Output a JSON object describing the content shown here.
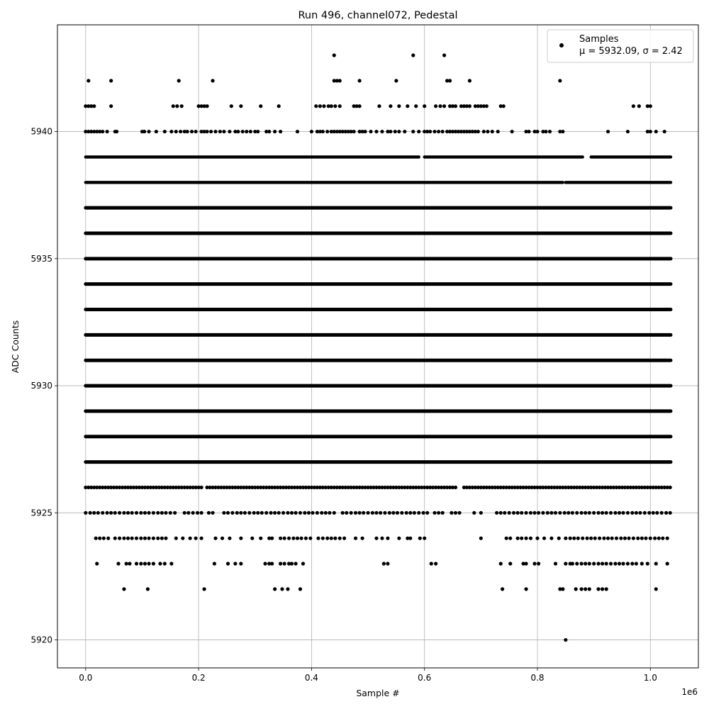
{
  "chart_data": {
    "type": "scatter",
    "title": "Run 496, channel072, Pedestal",
    "xlabel": "Sample #",
    "ylabel": "ADC Counts",
    "x_offset_label": "1e6",
    "xlim": [
      -50000,
      1085000
    ],
    "ylim": [
      5918.9,
      5944.2
    ],
    "x_ticks": [
      0,
      200000,
      400000,
      600000,
      800000,
      1000000
    ],
    "x_tick_labels": [
      "0.0",
      "0.2",
      "0.4",
      "0.6",
      "0.8",
      "1.0"
    ],
    "y_ticks": [
      5920,
      5925,
      5930,
      5935,
      5940
    ],
    "y_tick_labels": [
      "5920",
      "5925",
      "5930",
      "5935",
      "5940"
    ],
    "grid": true,
    "legend": {
      "placement": "top-right",
      "name": "Samples",
      "stats": "μ = 5932.09, σ = 2.42"
    },
    "marker_color": "#000000",
    "x_max": 1036000,
    "dense_levels": [
      5927,
      5928,
      5929,
      5930,
      5931,
      5932,
      5933,
      5934,
      5935,
      5936,
      5937
    ],
    "sparse_levels": {
      "5940": [
        0,
        5000,
        10000,
        15000,
        20000,
        25000,
        30000,
        38000,
        52000,
        55000,
        100000,
        104000,
        112000,
        125000,
        140000,
        152000,
        160000,
        168000,
        175000,
        180000,
        188000,
        195000,
        205000,
        210000,
        215000,
        222000,
        230000,
        238000,
        245000,
        255000,
        265000,
        270000,
        278000,
        285000,
        292000,
        300000,
        305000,
        320000,
        325000,
        335000,
        345000,
        375000,
        400000,
        410000,
        415000,
        420000,
        428000,
        435000,
        440000,
        445000,
        450000,
        455000,
        460000,
        465000,
        470000,
        475000,
        485000,
        490000,
        495000,
        505000,
        515000,
        525000,
        535000,
        540000,
        548000,
        555000,
        565000,
        580000,
        590000,
        600000,
        605000,
        610000,
        618000,
        625000,
        632000,
        640000,
        645000,
        650000,
        655000,
        660000,
        665000,
        670000,
        675000,
        680000,
        685000,
        690000,
        695000,
        705000,
        712000,
        720000,
        730000,
        755000,
        780000,
        785000,
        795000,
        800000,
        810000,
        815000,
        822000,
        840000,
        845000,
        925000,
        960000,
        995000,
        1000000,
        1010000,
        1025000
      ],
      "5941": [
        0,
        5000,
        10000,
        15000,
        45000,
        155000,
        162000,
        170000,
        200000,
        205000,
        210000,
        215000,
        258000,
        275000,
        310000,
        342000,
        408000,
        415000,
        422000,
        430000,
        435000,
        442000,
        450000,
        475000,
        480000,
        485000,
        520000,
        540000,
        555000,
        570000,
        585000,
        600000,
        620000,
        628000,
        635000,
        645000,
        650000,
        655000,
        665000,
        670000,
        675000,
        680000,
        690000,
        695000,
        700000,
        705000,
        710000,
        735000,
        740000,
        970000,
        980000,
        995000,
        1000000
      ],
      "5942": [
        5000,
        45000,
        165000,
        225000,
        440000,
        445000,
        450000,
        485000,
        550000,
        640000,
        645000,
        680000,
        840000
      ],
      "5943": [
        440000,
        580000,
        635000
      ],
      "5926": [
        0,
        5000,
        10000,
        15000,
        20000,
        25000,
        30000,
        35000,
        40000,
        45000,
        50000,
        55000,
        60000,
        65000,
        70000,
        75000,
        80000,
        85000,
        90000,
        95000,
        100000,
        105000,
        110000,
        115000,
        120000,
        125000,
        130000,
        135000,
        140000,
        145000,
        150000,
        155000,
        160000,
        165000,
        170000,
        175000,
        180000,
        185000,
        190000,
        195000,
        200000,
        205000,
        215000,
        220000,
        225000,
        230000,
        235000,
        240000,
        245000,
        250000,
        255000,
        260000,
        265000,
        270000,
        275000,
        280000,
        285000,
        290000,
        295000,
        300000,
        305000,
        310000,
        315000,
        320000,
        325000,
        330000,
        335000,
        340000,
        345000,
        350000,
        355000,
        360000,
        365000,
        370000,
        375000,
        380000,
        385000,
        390000,
        395000,
        400000,
        405000,
        410000,
        415000,
        420000,
        425000,
        430000,
        435000,
        440000,
        445000,
        450000,
        455000,
        460000,
        465000,
        470000,
        475000,
        480000,
        485000,
        490000,
        495000,
        500000,
        505000,
        510000,
        515000,
        520000,
        525000,
        530000,
        535000,
        540000,
        545000,
        550000,
        555000,
        560000,
        565000,
        570000,
        575000,
        580000,
        585000,
        590000,
        595000,
        600000,
        605000,
        610000,
        615000,
        620000,
        625000,
        630000,
        635000,
        640000,
        645000,
        650000,
        655000,
        670000,
        675000,
        680000,
        685000,
        690000,
        695000,
        700000,
        705000,
        710000,
        715000,
        720000,
        725000,
        730000,
        735000,
        740000,
        745000,
        750000,
        755000,
        760000,
        765000,
        770000,
        775000,
        780000,
        785000,
        790000,
        795000,
        800000,
        805000,
        810000,
        815000,
        820000,
        825000,
        830000,
        835000,
        840000,
        845000,
        850000,
        855000,
        860000,
        865000,
        870000,
        875000,
        880000,
        885000,
        890000,
        895000,
        900000,
        905000,
        910000,
        915000,
        920000,
        925000,
        930000,
        935000,
        940000,
        945000,
        950000,
        955000,
        960000,
        965000,
        970000,
        975000,
        980000,
        985000,
        990000,
        995000,
        1000000,
        1005000,
        1010000,
        1015000,
        1020000,
        1025000,
        1030000,
        1035000
      ],
      "5925": [
        0,
        8000,
        15000,
        22000,
        30000,
        38000,
        45000,
        52000,
        60000,
        68000,
        75000,
        82000,
        90000,
        98000,
        105000,
        112000,
        120000,
        128000,
        135000,
        142000,
        150000,
        158000,
        175000,
        182000,
        190000,
        198000,
        205000,
        218000,
        225000,
        245000,
        252000,
        260000,
        268000,
        275000,
        282000,
        290000,
        298000,
        305000,
        312000,
        320000,
        328000,
        335000,
        342000,
        350000,
        358000,
        365000,
        372000,
        380000,
        388000,
        395000,
        402000,
        410000,
        418000,
        425000,
        432000,
        440000,
        455000,
        462000,
        470000,
        478000,
        485000,
        492000,
        500000,
        508000,
        515000,
        522000,
        530000,
        538000,
        545000,
        552000,
        560000,
        568000,
        575000,
        582000,
        590000,
        598000,
        605000,
        618000,
        625000,
        632000,
        648000,
        655000,
        662000,
        688000,
        700000,
        728000,
        735000,
        742000,
        750000,
        758000,
        765000,
        772000,
        780000,
        788000,
        795000,
        802000,
        810000,
        818000,
        825000,
        832000,
        840000,
        848000,
        855000,
        862000,
        870000,
        878000,
        885000,
        892000,
        900000,
        908000,
        915000,
        922000,
        930000,
        938000,
        945000,
        952000,
        960000,
        968000,
        975000,
        982000,
        990000,
        998000,
        1005000,
        1012000,
        1020000,
        1028000,
        1035000
      ],
      "5924": [
        18000,
        25000,
        32000,
        40000,
        52000,
        60000,
        68000,
        75000,
        82000,
        90000,
        98000,
        105000,
        112000,
        120000,
        128000,
        135000,
        142000,
        160000,
        172000,
        185000,
        195000,
        205000,
        230000,
        242000,
        255000,
        275000,
        295000,
        310000,
        325000,
        330000,
        345000,
        352000,
        360000,
        368000,
        375000,
        382000,
        390000,
        398000,
        412000,
        420000,
        428000,
        435000,
        442000,
        450000,
        458000,
        478000,
        490000,
        515000,
        525000,
        535000,
        555000,
        570000,
        575000,
        592000,
        600000,
        700000,
        745000,
        752000,
        765000,
        772000,
        780000,
        788000,
        800000,
        812000,
        825000,
        838000,
        850000,
        858000,
        865000,
        872000,
        880000,
        888000,
        895000,
        902000,
        910000,
        918000,
        925000,
        932000,
        940000,
        948000,
        955000,
        962000,
        970000,
        978000,
        985000,
        992000,
        1000000,
        1008000,
        1015000,
        1022000,
        1030000
      ],
      "5923": [
        20000,
        58000,
        72000,
        78000,
        90000,
        98000,
        105000,
        112000,
        120000,
        132000,
        140000,
        152000,
        228000,
        252000,
        265000,
        275000,
        318000,
        325000,
        330000,
        345000,
        352000,
        360000,
        365000,
        372000,
        385000,
        528000,
        535000,
        612000,
        620000,
        735000,
        752000,
        775000,
        780000,
        795000,
        802000,
        832000,
        850000,
        858000,
        862000,
        870000,
        878000,
        885000,
        892000,
        900000,
        908000,
        915000,
        922000,
        930000,
        938000,
        945000,
        952000,
        960000,
        968000,
        975000,
        985000,
        995000,
        1010000,
        1030000
      ],
      "5922": [
        68000,
        110000,
        210000,
        335000,
        348000,
        358000,
        380000,
        738000,
        780000,
        840000,
        845000,
        868000,
        878000,
        885000,
        892000,
        908000,
        915000,
        922000,
        1010000
      ],
      "5920": [
        850000
      ]
    },
    "dense_gaps": {
      "5939": [
        [
          590000,
          600000
        ],
        [
          880000,
          895000
        ]
      ],
      "5938": [
        [
          845000,
          850000
        ]
      ]
    },
    "semi_dense_levels": [
      5938,
      5939
    ]
  }
}
